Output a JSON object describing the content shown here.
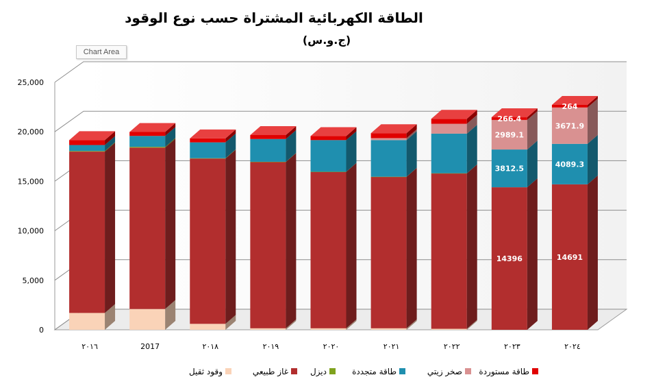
{
  "chart_data": {
    "type": "bar",
    "stacked": true,
    "title": "الطاقة الكهربائية المشتراة حسب نوع الوقود",
    "subtitle": "(ج.و.س)",
    "chart_area_label": "Chart Area",
    "categories": [
      "٢٠١٦",
      "2017",
      "٢٠١٨",
      "٢٠١٩",
      "٢٠٢٠",
      "٢٠٢١",
      "٢٠٢٢",
      "٢٠٢٣",
      "٢٠٢٤"
    ],
    "ylim": [
      0,
      25000
    ],
    "yticks": [
      0,
      5000,
      10000,
      15000,
      20000,
      25000
    ],
    "ytick_labels": [
      "0",
      "5,000",
      "10,000",
      "15,000",
      "20,000",
      "25,000"
    ],
    "legend_position": "bottom",
    "series": [
      {
        "name": "وقود ثقيل",
        "color": "#FAD3B8",
        "values": [
          1700,
          2100,
          600,
          150,
          150,
          150,
          100,
          0,
          0
        ]
      },
      {
        "name": "غاز طبيعي",
        "color": "#B22E2E",
        "values": [
          16300,
          16300,
          16700,
          16800,
          15800,
          15300,
          15700,
          14396,
          14691
        ]
      },
      {
        "name": "ديزل",
        "color": "#7FA21E",
        "values": [
          60,
          80,
          30,
          20,
          10,
          10,
          10,
          0,
          0
        ]
      },
      {
        "name": "طاقة متجددة",
        "color": "#1F8FAF",
        "values": [
          600,
          1100,
          1600,
          2300,
          3200,
          3700,
          4000,
          3812.5,
          4089.3
        ]
      },
      {
        "name": "صخر زيتي",
        "color": "#D99191",
        "values": [
          0,
          0,
          0,
          0,
          0,
          200,
          1000,
          2989.1,
          3671.9
        ]
      },
      {
        "name": "طاقة مستوردة",
        "color": "#E00000",
        "values": [
          500,
          400,
          400,
          400,
          400,
          500,
          500,
          266.4,
          264
        ]
      }
    ],
    "data_labels": [
      {
        "category": "٢٠٢٣",
        "series": "غاز طبيعي",
        "text": "14396"
      },
      {
        "category": "٢٠٢٣",
        "series": "طاقة متجددة",
        "text": "3812.5"
      },
      {
        "category": "٢٠٢٣",
        "series": "صخر زيتي",
        "text": "2989.1"
      },
      {
        "category": "٢٠٢٣",
        "series": "طاقة مستوردة",
        "text": "266.4"
      },
      {
        "category": "٢٠٢٤",
        "series": "غاز طبيعي",
        "text": "14691"
      },
      {
        "category": "٢٠٢٤",
        "series": "طاقة متجددة",
        "text": "4089.3"
      },
      {
        "category": "٢٠٢٤",
        "series": "صخر زيتي",
        "text": "3671.9"
      },
      {
        "category": "٢٠٢٤",
        "series": "طاقة مستوردة",
        "text": "264"
      }
    ]
  }
}
